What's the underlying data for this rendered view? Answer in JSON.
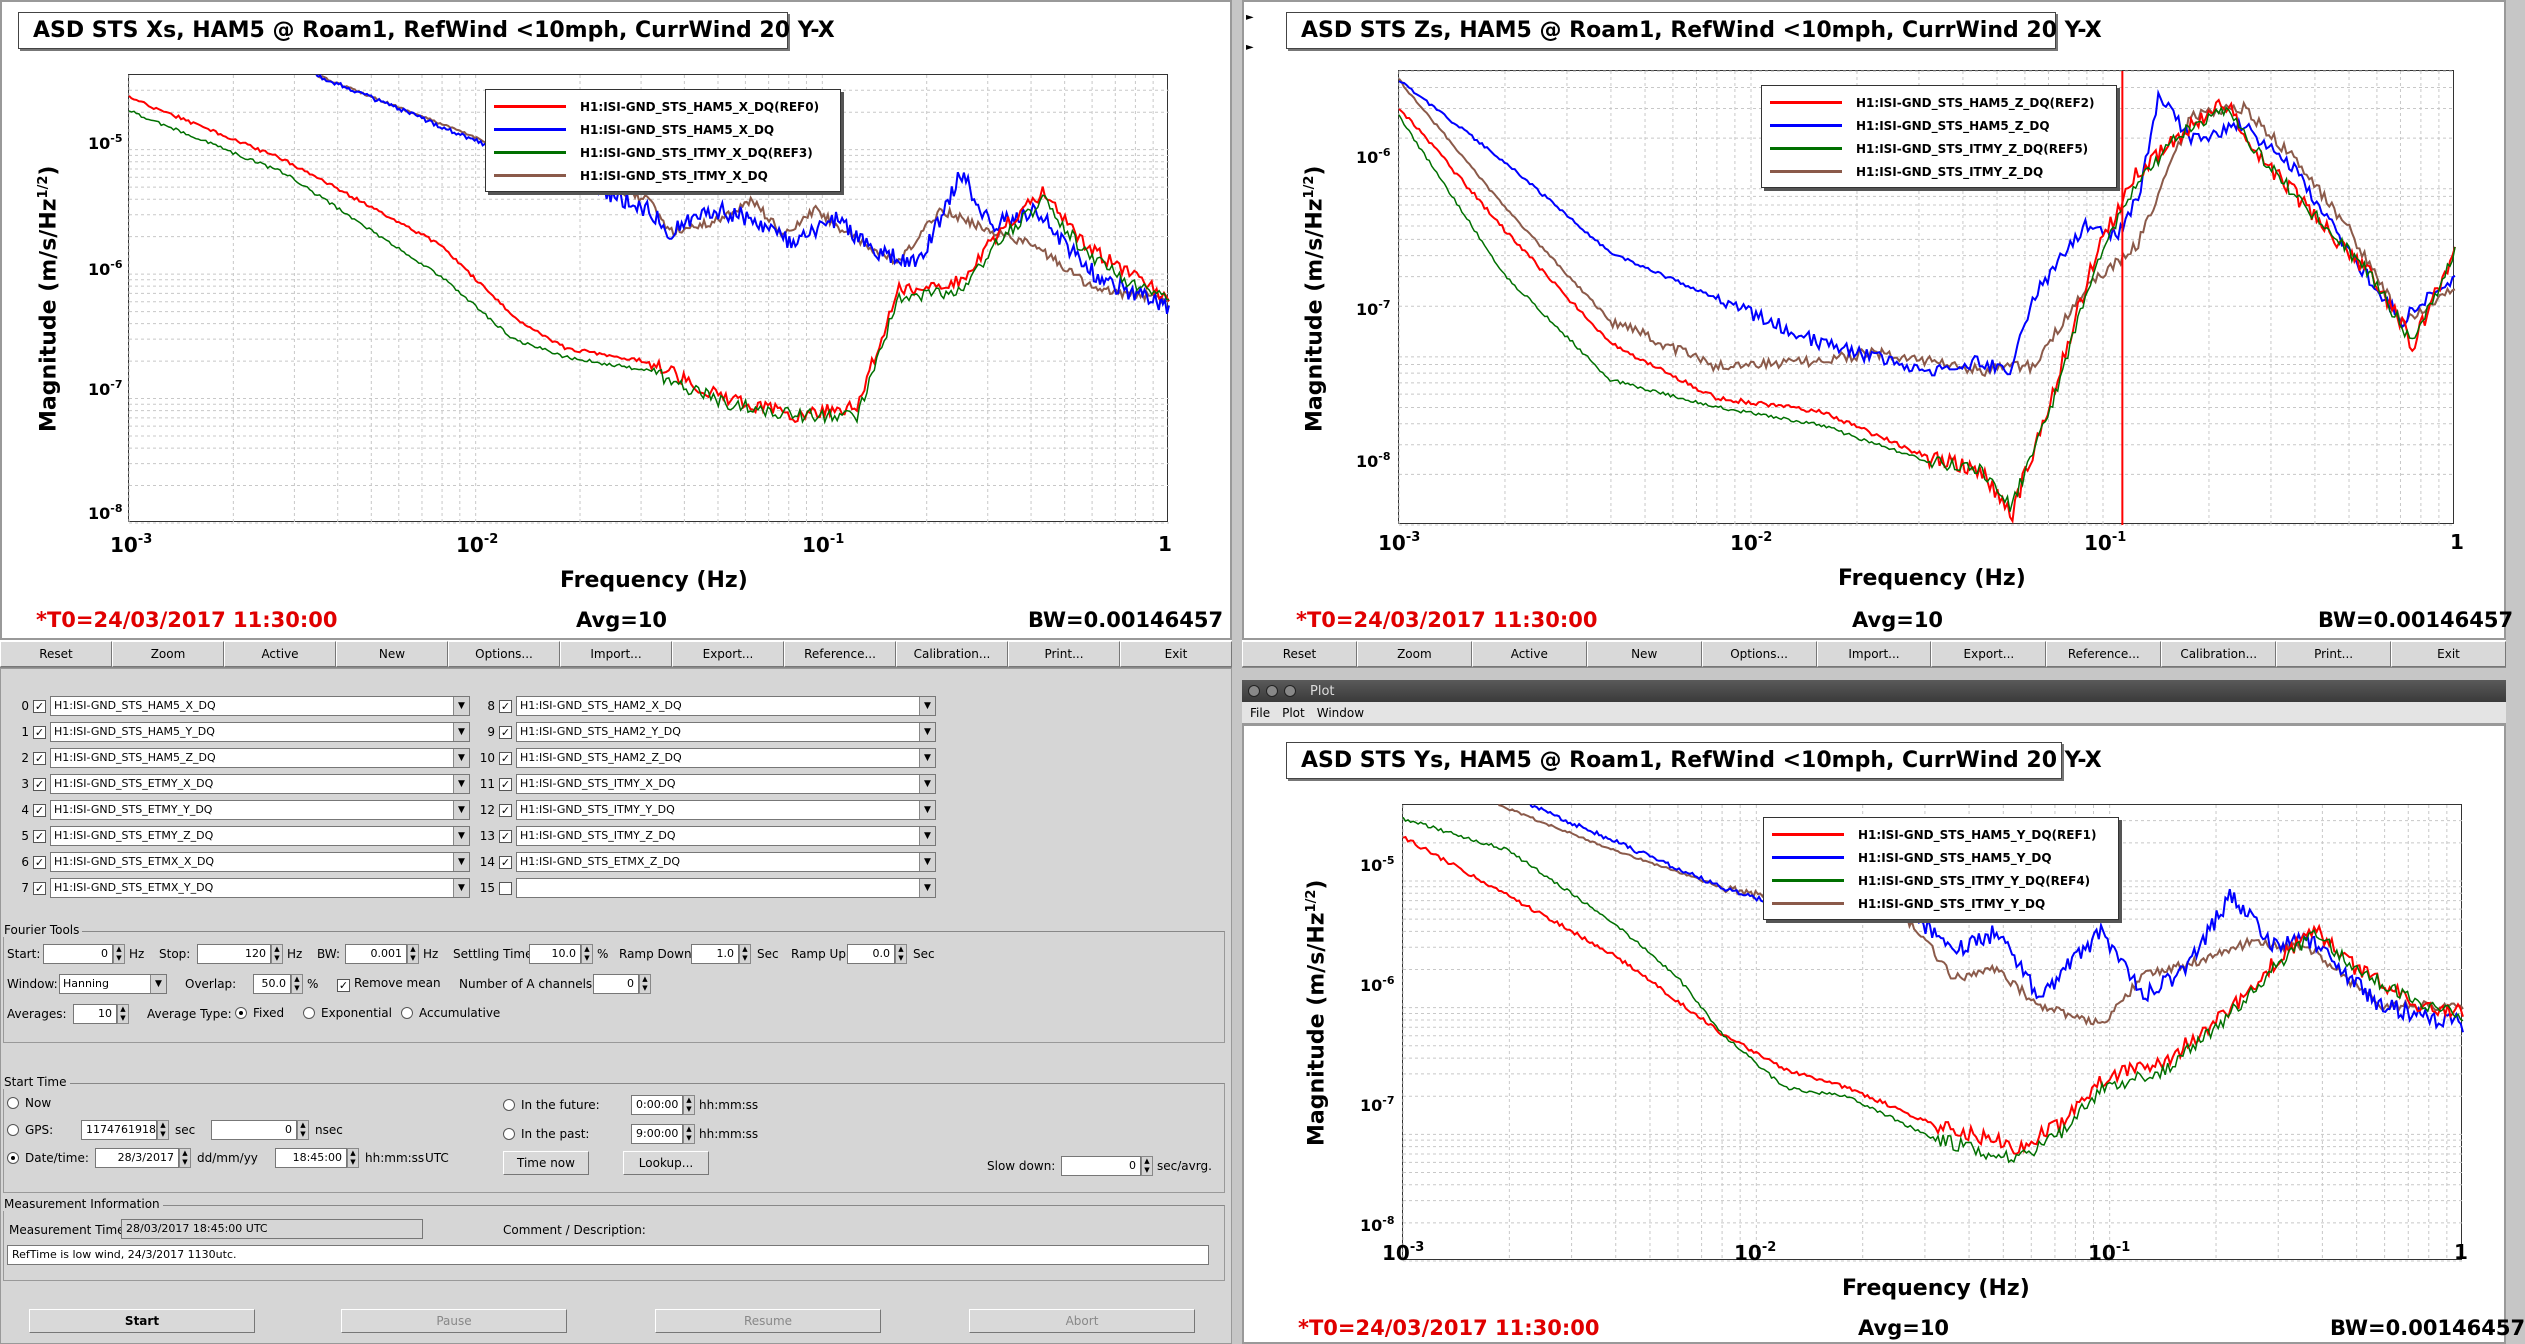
{
  "plots": [
    {
      "id": "xs",
      "title": "ASD STS Xs, HAM5 @ Roam1, RefWind <10mph, CurrWind 20 Y-X",
      "ylabel": "Magnitude (m/s/Hz",
      "ylabel_sup": "1/2",
      "xlabel": "Frequency (Hz)",
      "xticks": [
        "10",
        "-3",
        "10",
        "-2",
        "10",
        "-1",
        "1"
      ],
      "yticks": [
        "-5",
        "-6",
        "-7",
        "-8"
      ],
      "legend": [
        "H1:ISI-GND_STS_HAM5_X_DQ(REF0)",
        "H1:ISI-GND_STS_HAM5_X_DQ",
        "H1:ISI-GND_STS_ITMY_X_DQ(REF3)",
        "H1:ISI-GND_STS_ITMY_X_DQ"
      ],
      "t0": "*T0=24/03/2017 11:30:00",
      "avg": "Avg=10",
      "bw": "BW=0.00146457"
    },
    {
      "id": "zs",
      "title": "ASD STS Zs, HAM5 @ Roam1, RefWind <10mph, CurrWind 20 Y-X",
      "ylabel": "Magnitude (m/s/Hz",
      "ylabel_sup": "1/2",
      "xlabel": "Frequency (Hz)",
      "yticks": [
        "-6",
        "-7",
        "-8"
      ],
      "legend": [
        "H1:ISI-GND_STS_HAM5_Z_DQ(REF2)",
        "H1:ISI-GND_STS_HAM5_Z_DQ",
        "H1:ISI-GND_STS_ITMY_Z_DQ(REF5)",
        "H1:ISI-GND_STS_ITMY_Z_DQ"
      ],
      "t0": "*T0=24/03/2017 11:30:00",
      "avg": "Avg=10",
      "bw": "BW=0.00146457"
    },
    {
      "id": "ys",
      "title": "ASD STS Ys, HAM5 @ Roam1, RefWind <10mph, CurrWind 20 Y-X",
      "ylabel": "Magnitude (m/s/Hz",
      "ylabel_sup": "1/2",
      "xlabel": "Frequency (Hz)",
      "yticks": [
        "-5",
        "-6",
        "-7",
        "-8"
      ],
      "legend": [
        "H1:ISI-GND_STS_HAM5_Y_DQ(REF1)",
        "H1:ISI-GND_STS_HAM5_Y_DQ",
        "H1:ISI-GND_STS_ITMY_Y_DQ(REF4)",
        "H1:ISI-GND_STS_ITMY_Y_DQ"
      ],
      "t0": "*T0=24/03/2017 11:30:00",
      "avg": "Avg=10",
      "bw": "BW=0.00146457"
    }
  ],
  "colors": {
    "ref_ham5": "#ff0000",
    "ham5": "#0000ff",
    "ref_itmy": "#007000",
    "itmy": "#8b5a4a"
  },
  "buttons": [
    "Reset",
    "Zoom",
    "Active",
    "New",
    "Options...",
    "Import...",
    "Export...",
    "Reference...",
    "Calibration...",
    "Print...",
    "Exit"
  ],
  "channels_left": [
    {
      "n": "0",
      "name": "H1:ISI-GND_STS_HAM5_X_DQ"
    },
    {
      "n": "1",
      "name": "H1:ISI-GND_STS_HAM5_Y_DQ"
    },
    {
      "n": "2",
      "name": "H1:ISI-GND_STS_HAM5_Z_DQ"
    },
    {
      "n": "3",
      "name": "H1:ISI-GND_STS_ETMY_X_DQ"
    },
    {
      "n": "4",
      "name": "H1:ISI-GND_STS_ETMY_Y_DQ"
    },
    {
      "n": "5",
      "name": "H1:ISI-GND_STS_ETMY_Z_DQ"
    },
    {
      "n": "6",
      "name": "H1:ISI-GND_STS_ETMX_X_DQ"
    },
    {
      "n": "7",
      "name": "H1:ISI-GND_STS_ETMX_Y_DQ"
    }
  ],
  "channels_right": [
    {
      "n": "8",
      "name": "H1:ISI-GND_STS_HAM2_X_DQ"
    },
    {
      "n": "9",
      "name": "H1:ISI-GND_STS_HAM2_Y_DQ"
    },
    {
      "n": "10",
      "name": "H1:ISI-GND_STS_HAM2_Z_DQ"
    },
    {
      "n": "11",
      "name": "H1:ISI-GND_STS_ITMY_X_DQ"
    },
    {
      "n": "12",
      "name": "H1:ISI-GND_STS_ITMY_Y_DQ"
    },
    {
      "n": "13",
      "name": "H1:ISI-GND_STS_ITMY_Z_DQ"
    },
    {
      "n": "14",
      "name": "H1:ISI-GND_STS_ETMX_Z_DQ"
    },
    {
      "n": "15",
      "name": ""
    }
  ],
  "fourier": {
    "title": "Fourier Tools",
    "start_label": "Start:",
    "start": "0",
    "hz": "Hz",
    "stop_label": "Stop:",
    "stop": "120",
    "bw_label": "BW:",
    "bw": "0.001",
    "settling_label": "Settling Time:",
    "settling": "10.0",
    "pct": "%",
    "rampdown_label": "Ramp Down:",
    "rampdown": "1.0",
    "sec": "Sec",
    "rampup_label": "Ramp Up:",
    "rampup": "0.0",
    "window_label": "Window:",
    "window": "Hanning",
    "overlap_label": "Overlap:",
    "overlap": "50.0",
    "remove_mean": "Remove mean",
    "numa_label": "Number of A channels:",
    "numa": "0",
    "avg_label": "Averages:",
    "avg": "10",
    "avgtype_label": "Average Type:",
    "fixed": "Fixed",
    "exponential": "Exponential",
    "accumulative": "Accumulative"
  },
  "start_time": {
    "title": "Start Time",
    "now": "Now",
    "gps_label": "GPS:",
    "gps": "1174761918",
    "sec": "sec",
    "nsec_val": "0",
    "nsec": "nsec",
    "date_label": "Date/time:",
    "date": "28/3/2017",
    "date_fmt": "dd/mm/yy",
    "time": "18:45:00",
    "time_fmt": "hh:mm:ss",
    "utc": "UTC",
    "future_label": "In the future:",
    "future": "0:00:00",
    "hhmmss": "hh:mm:ss",
    "past_label": "In the past:",
    "past": "9:00:00",
    "time_now": "Time now",
    "lookup": "Lookup...",
    "slow_label": "Slow down:",
    "slow": "0",
    "slow_unit": "sec/avrg."
  },
  "measurement": {
    "title": "Measurement Information",
    "time_label": "Measurement Time:",
    "time": "28/03/2017 18:45:00  UTC",
    "comment_label": "Comment / Description:",
    "comment": "RefTime is low wind, 24/3/2017 1130utc."
  },
  "bottom_buttons": [
    "Start",
    "Pause",
    "Resume",
    "Abort"
  ],
  "plot_window": {
    "title": "Plot",
    "menu": [
      "File",
      "Plot",
      "Window"
    ]
  }
}
